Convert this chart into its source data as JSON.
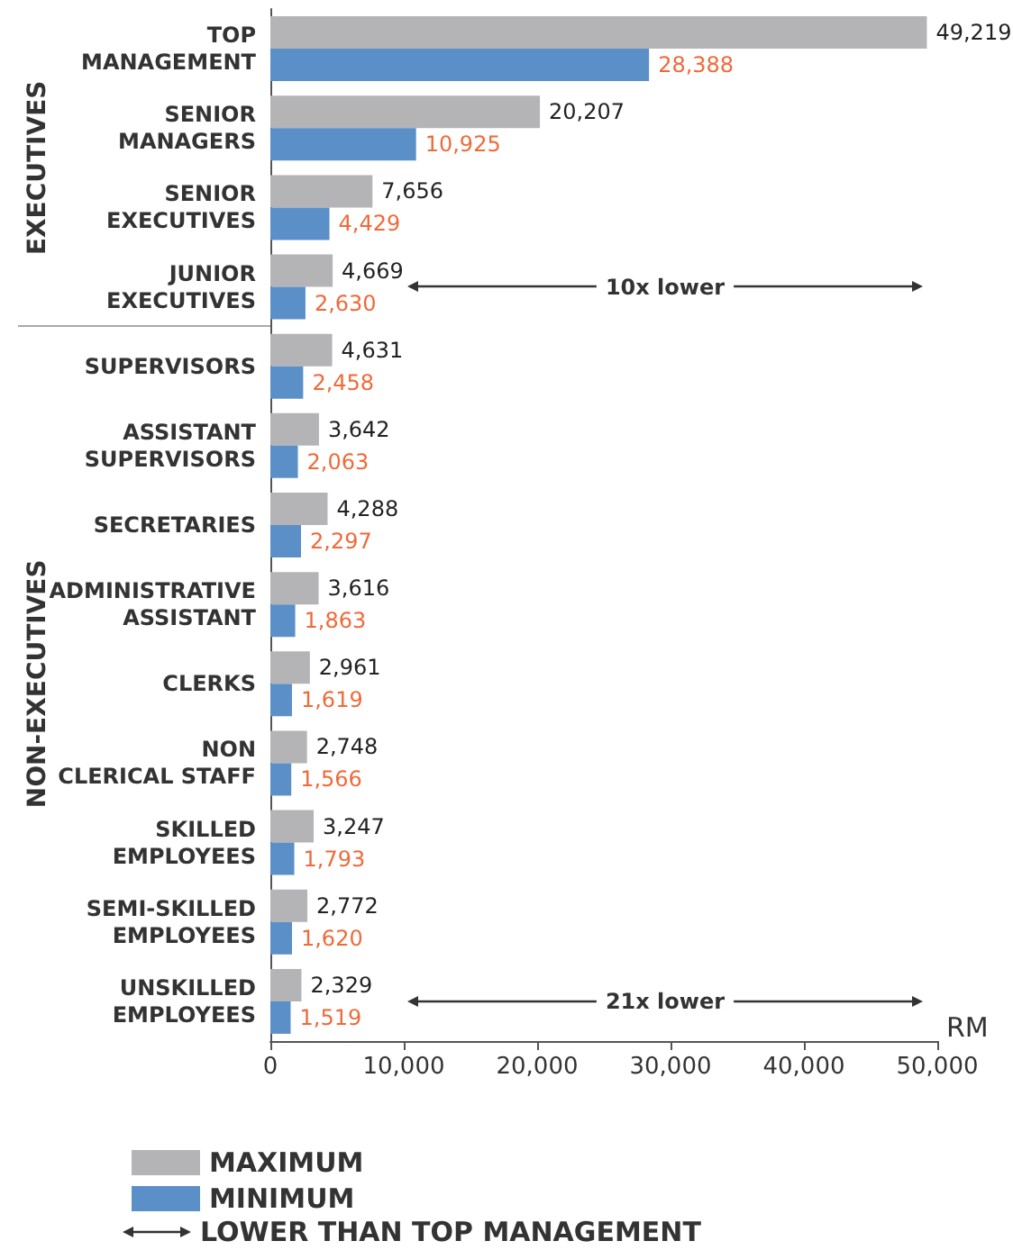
{
  "chart_data": {
    "type": "bar",
    "orientation": "horizontal",
    "xlabel": "RM",
    "categories": [
      "TOP\nMANAGEMENT",
      "SENIOR\nMANAGERS",
      "SENIOR\nEXECUTIVES",
      "JUNIOR\nEXECUTIVES",
      "SUPERVISORS",
      "ASSISTANT\nSUPERVISORS",
      "SECRETARIES",
      "ADMINISTRATIVE\nASSISTANT",
      "CLERKS",
      "NON\nCLERICAL STAFF",
      "SKILLED\nEMPLOYEES",
      "SEMI-SKILLED\nEMPLOYEES",
      "UNSKILLED\nEMPLOYEES"
    ],
    "series": [
      {
        "name": "MAXIMUM",
        "color": "#b4b4b6",
        "values": [
          49219,
          20207,
          7656,
          4669,
          4631,
          3642,
          4288,
          3616,
          2961,
          2748,
          3247,
          2772,
          2329
        ],
        "value_labels": [
          "49,219",
          "20,207",
          "7,656",
          "4,669",
          "4,631",
          "3,642",
          "4,288",
          "3,616",
          "2,961",
          "2,748",
          "3,247",
          "2,772",
          "2,329"
        ]
      },
      {
        "name": "MINIMUM",
        "color": "#5b8fc7",
        "values": [
          28388,
          10925,
          4429,
          2630,
          2458,
          2063,
          2297,
          1863,
          1619,
          1566,
          1793,
          1620,
          1519
        ],
        "value_labels": [
          "28,388",
          "10,925",
          "4,429",
          "2,630",
          "2,458",
          "2,063",
          "2,297",
          "1,863",
          "1,619",
          "1,566",
          "1,793",
          "1,620",
          "1,519"
        ]
      }
    ],
    "xlim": [
      0,
      50000
    ],
    "xticks": [
      0,
      {
        "value": 10000,
        "label": "10,000"
      },
      {
        "value": 20000,
        "label": "20,000"
      },
      {
        "value": 30000,
        "label": "30,000"
      },
      {
        "value": 40000,
        "label": "40,000"
      },
      {
        "value": 50000,
        "label": "50,000"
      }
    ],
    "annotations": [
      "EXECUTIVES",
      "NON-EXECUTIVES",
      "10x lower",
      "21x lower",
      "LOWER THAN TOP MANAGEMENT"
    ],
    "grid": false,
    "legend": "bottom left"
  }
}
